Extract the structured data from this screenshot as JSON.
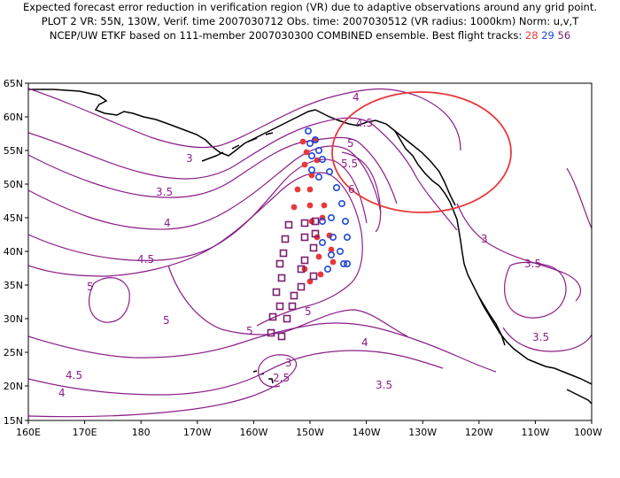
{
  "title": {
    "line1": "Expected forecast error reduction in verification region (VR) due to adaptive observations around any grid point.",
    "line2": "PLOT 2 VR: 55N, 130W, Verif. time 2007030712 Obs. time: 2007030512 (VR radius: 1000km) Norm: u,v,T",
    "line3_prefix": "NCEP/UW ETKF based on 111-member 2007030300 COMBINED ensemble.  Best flight tracks:",
    "track_a": "28",
    "track_b": "29",
    "track_c": "56"
  },
  "axes": {
    "lat_labels": [
      "65N",
      "60N",
      "55N",
      "50N",
      "45N",
      "40N",
      "35N",
      "30N",
      "25N",
      "20N",
      "15N"
    ],
    "lon_labels": [
      "160E",
      "170E",
      "180",
      "170W",
      "160W",
      "150W",
      "140W",
      "130W",
      "120W",
      "110W",
      "100W"
    ]
  },
  "contour_labels": [
    "4",
    "4.5",
    "5",
    "5.5",
    "6",
    "3",
    "3.5",
    "4",
    "4.5",
    "5",
    "5",
    "5",
    "3",
    "2.5",
    "4",
    "4.5",
    "4",
    "3.5",
    "3",
    "3.5",
    "3.5",
    "5"
  ],
  "colors": {
    "contour": "#8a1e88",
    "track_28": "#e8383a",
    "track_29": "#2048d8",
    "track_56": "#7a1e6e",
    "verification_circle": "#e8383a"
  }
}
